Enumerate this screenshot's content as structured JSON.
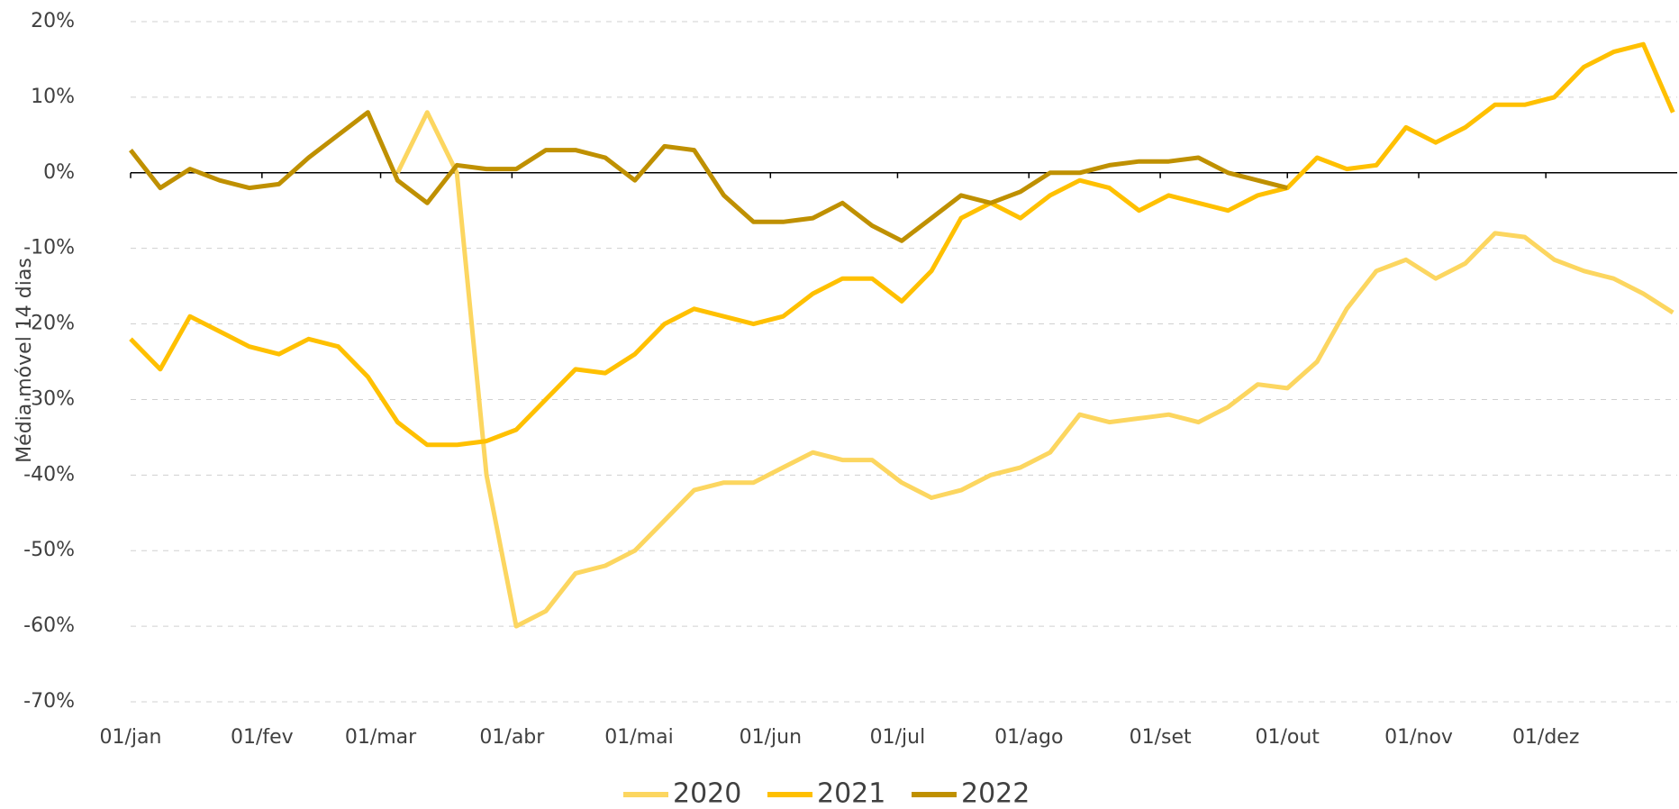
{
  "chart_data": {
    "type": "line",
    "y_label": "Média móvel 14 dias",
    "x": [
      0,
      7,
      14,
      21,
      28,
      35,
      42,
      49,
      56,
      63,
      70,
      77,
      84,
      91,
      98,
      105,
      112,
      119,
      126,
      133,
      140,
      147,
      154,
      161,
      168,
      175,
      182,
      189,
      196,
      203,
      210,
      217,
      224,
      231,
      238,
      245,
      252,
      259,
      266,
      273,
      280,
      287,
      294,
      301,
      308,
      315,
      322,
      329,
      336,
      343,
      350,
      357,
      364
    ],
    "xlim": [
      0,
      365
    ],
    "xticks": [
      {
        "value": 0,
        "label": "01/jan"
      },
      {
        "value": 31,
        "label": "01/fev"
      },
      {
        "value": 59,
        "label": "01/mar"
      },
      {
        "value": 90,
        "label": "01/abr"
      },
      {
        "value": 120,
        "label": "01/mai"
      },
      {
        "value": 151,
        "label": "01/jun"
      },
      {
        "value": 181,
        "label": "01/jul"
      },
      {
        "value": 212,
        "label": "01/ago"
      },
      {
        "value": 243,
        "label": "01/set"
      },
      {
        "value": 273,
        "label": "01/out"
      },
      {
        "value": 304,
        "label": "01/nov"
      },
      {
        "value": 334,
        "label": "01/dez"
      }
    ],
    "ylim": [
      -70,
      20
    ],
    "yticks": [
      {
        "value": -70,
        "label": "-70%"
      },
      {
        "value": -60,
        "label": "-60%"
      },
      {
        "value": -50,
        "label": "-50%"
      },
      {
        "value": -40,
        "label": "-40%"
      },
      {
        "value": -30,
        "label": "-30%"
      },
      {
        "value": -20,
        "label": "-20%"
      },
      {
        "value": -10,
        "label": "-10%"
      },
      {
        "value": 0,
        "label": "0%"
      },
      {
        "value": 10,
        "label": "10%"
      },
      {
        "value": 20,
        "label": "20%"
      }
    ],
    "grid": true,
    "legend": "bottom",
    "series": [
      {
        "name": "2020",
        "color": "#fcd660",
        "values": [
          null,
          null,
          null,
          null,
          null,
          null,
          null,
          null,
          null,
          0,
          8,
          0,
          -40,
          -60,
          -58,
          -53,
          -52,
          -50,
          -46,
          -42,
          -41,
          -41,
          -39,
          -37,
          -38,
          -38,
          -41,
          -43,
          -42,
          -40,
          -39,
          -37,
          -32,
          -33,
          -32.5,
          -32,
          -33,
          -31,
          -28,
          -28.5,
          -25,
          -18,
          -13,
          -11.5,
          -14,
          -12,
          -8,
          -8.5,
          -11.5,
          -13,
          -14,
          -16,
          -18.5
        ]
      },
      {
        "name": "2021",
        "color": "#ffc000",
        "values": [
          -22,
          -26,
          -19,
          -21,
          -23,
          -24,
          -22,
          -23,
          -27,
          -33,
          -36,
          -36,
          -35.5,
          -34,
          -30,
          -26,
          -26.5,
          -24,
          -20,
          -18,
          -19,
          -20,
          -19,
          -16,
          -14,
          -14,
          -17,
          -13,
          -6,
          -4,
          -6,
          -3,
          -1,
          -2,
          -5,
          -3,
          -4,
          -5,
          -3,
          -2,
          2,
          0.5,
          1,
          6,
          4,
          6,
          9,
          9,
          10,
          14,
          16,
          17,
          8
        ]
      },
      {
        "name": "2022",
        "color": "#bf9000",
        "values": [
          3,
          -2,
          0.5,
          -1,
          -2,
          -1.5,
          2,
          5,
          8,
          -1,
          -4,
          1,
          0.5,
          0.5,
          3,
          3,
          2,
          -1,
          3.5,
          3,
          -3,
          -6.5,
          -6.5,
          -6,
          -4,
          -7,
          -9,
          -6,
          -3,
          -4,
          -2.5,
          0,
          0,
          1,
          1.5,
          1.5,
          2,
          0,
          -1,
          -2,
          null,
          null,
          null,
          null,
          null,
          null,
          null,
          null,
          null,
          null,
          null,
          null,
          null
        ]
      }
    ]
  }
}
